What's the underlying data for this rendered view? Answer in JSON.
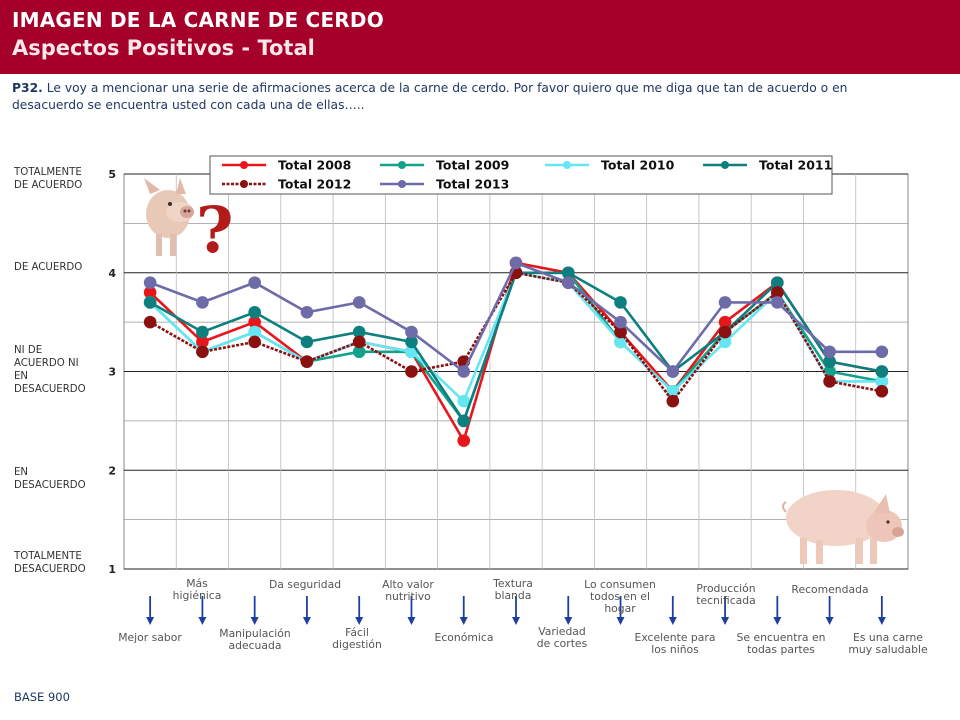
{
  "header": {
    "title": "IMAGEN DE LA CARNE DE CERDO",
    "subtitle": "Aspectos Positivos - Total"
  },
  "question": {
    "code": "P32.",
    "text": "Le voy a mencionar una serie de afirmaciones acerca de la carne de cerdo. Por  favor quiero que me diga que tan de acuerdo o en desacuerdo se encuentra usted con cada una de ellas….."
  },
  "scale_labels": [
    "TOTALMENTE DE ACUERDO",
    "DE ACUERDO",
    "NI DE ACUERDO NI EN DESACUERDO",
    "EN DESACUERDO",
    "TOTALMENTE DESACUERDO"
  ],
  "base": "BASE 900",
  "chart_data": {
    "type": "line",
    "ylim": [
      1,
      5
    ],
    "yticks": [
      1,
      2,
      3,
      4,
      5
    ],
    "grid": true,
    "legend_position": "top",
    "categories": [
      "Mejor sabor",
      "Más higiénica",
      "Manipulación adecuada",
      "Da seguridad",
      "Fácil digestión",
      "Alto valor nutritivo",
      "Económica",
      "Textura blanda",
      "Variedad de cortes",
      "Lo consumen todos en el hogar",
      "Excelente para los niños",
      "Producción tecnificada",
      "Se encuentra en todas partes",
      "Recomendada",
      "Es una carne muy saludable"
    ],
    "series": [
      {
        "name": "Total 2008",
        "color": "#E8161B",
        "values": [
          3.8,
          3.3,
          3.5,
          3.1,
          3.3,
          3.2,
          2.3,
          4.1,
          4.0,
          3.4,
          2.8,
          3.5,
          3.9,
          3.1,
          3.0
        ]
      },
      {
        "name": "Total 2009",
        "color": "#12A28B",
        "values": [
          3.7,
          3.2,
          3.4,
          3.1,
          3.2,
          3.2,
          2.5,
          4.0,
          4.0,
          3.3,
          2.8,
          3.4,
          3.8,
          3.0,
          2.9
        ]
      },
      {
        "name": "Total 2010",
        "color": "#66E5F2",
        "values": [
          3.7,
          3.2,
          3.4,
          3.1,
          3.3,
          3.2,
          2.7,
          4.0,
          3.9,
          3.3,
          2.8,
          3.3,
          3.8,
          2.9,
          2.9
        ]
      },
      {
        "name": "Total 2011",
        "color": "#0E7F7F",
        "values": [
          3.7,
          3.4,
          3.6,
          3.3,
          3.4,
          3.3,
          2.5,
          4.0,
          4.0,
          3.7,
          3.0,
          3.4,
          3.9,
          3.1,
          3.0
        ]
      },
      {
        "name": "Total 2012",
        "color": "#8B1111",
        "values": [
          3.5,
          3.2,
          3.3,
          3.1,
          3.3,
          3.0,
          3.1,
          4.0,
          3.9,
          3.4,
          2.7,
          3.4,
          3.8,
          2.9,
          2.8
        ]
      },
      {
        "name": "Total 2013",
        "color": "#6D6BA8",
        "values": [
          3.9,
          3.7,
          3.9,
          3.6,
          3.7,
          3.4,
          3.0,
          4.1,
          3.9,
          3.5,
          3.0,
          3.7,
          3.7,
          3.2,
          3.2
        ]
      }
    ]
  }
}
